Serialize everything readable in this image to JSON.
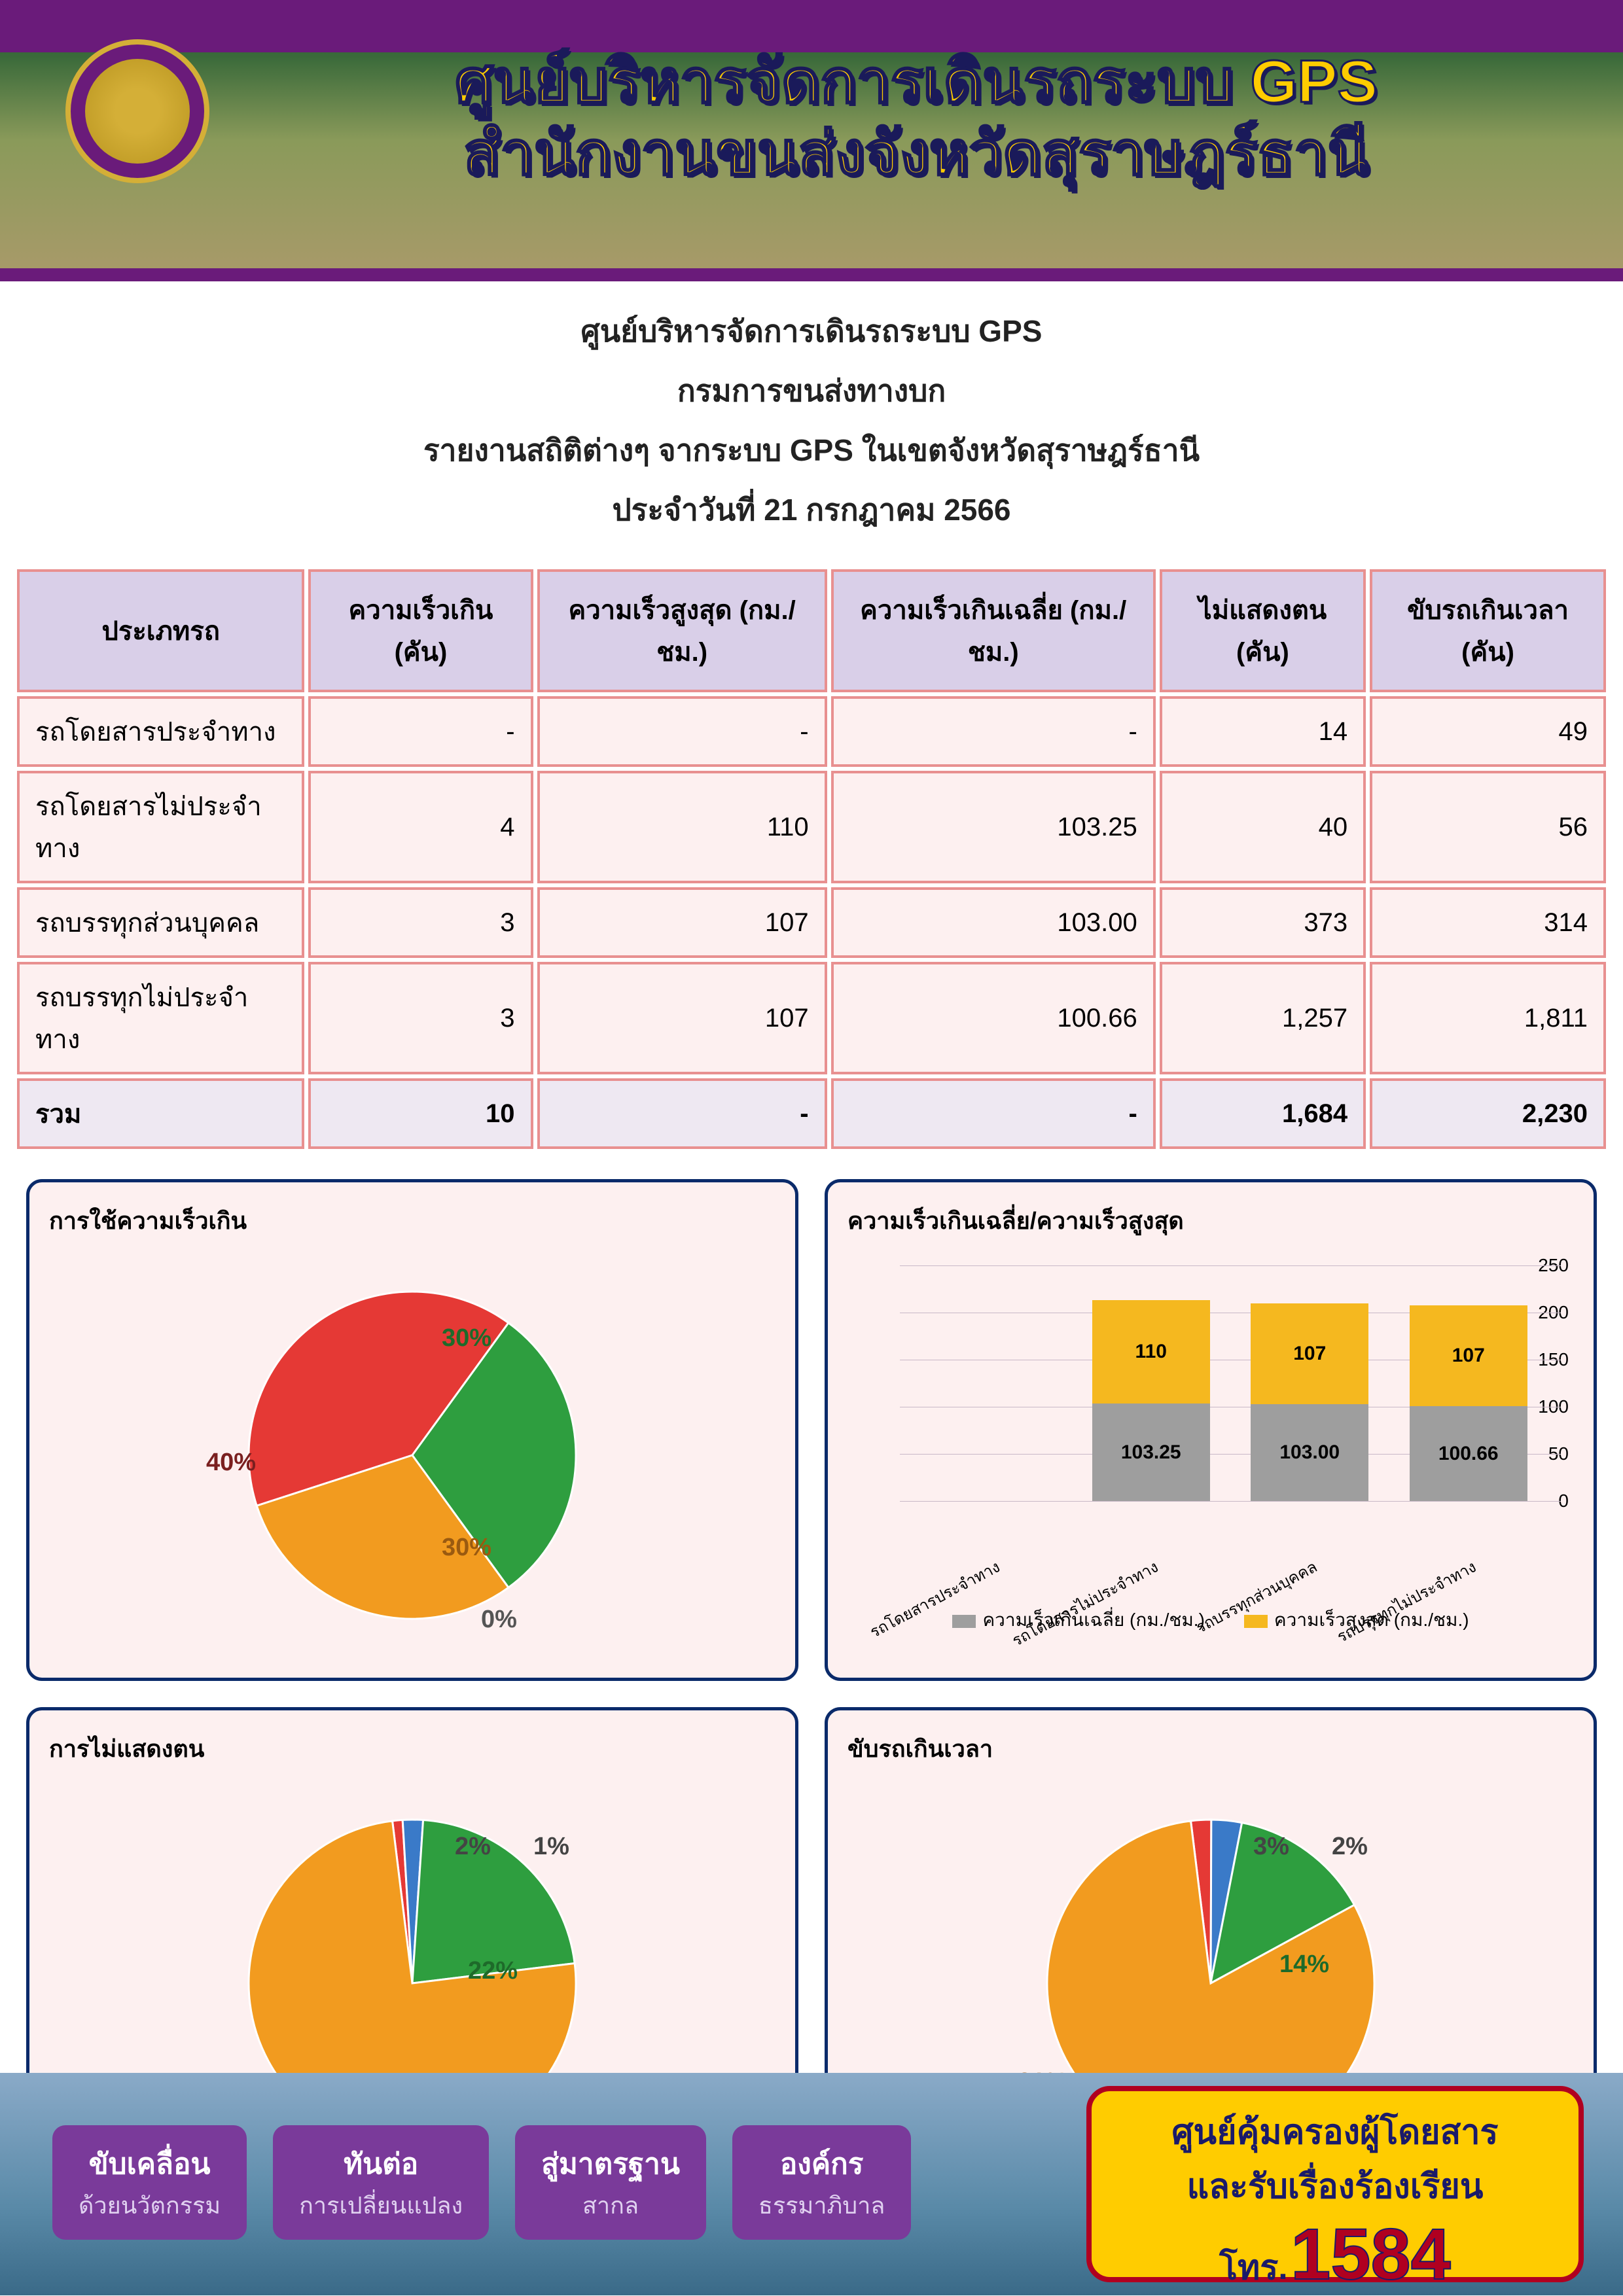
{
  "header": {
    "title_line1": "ศูนย์บริหารจัดการเดินรถระบบ GPS",
    "title_line2": "สำนักงานขนส่งจังหวัดสุราษฎร์ธานี",
    "title_color": "#ffcc00",
    "title_stroke": "#1a1a5a",
    "purple": "#6a1b7a",
    "gold": "#d4af37"
  },
  "subheader": {
    "line1": "ศูนย์บริหารจัดการเดินรถระบบ GPS",
    "line2": "กรมการขนส่งทางบก",
    "line3": "รายงานสถิติต่างๆ จากระบบ GPS ในเขตจังหวัดสุราษฎร์ธานี",
    "line4": "ประจำวันที่    21  กรกฎาคม    2566"
  },
  "table": {
    "header_bg": "#d9cfe8",
    "cell_bg": "#fdf0f0",
    "border_color": "#e89090",
    "columns": [
      "ประเภทรถ",
      "ความเร็วเกิน (คัน)",
      "ความเร็วสูงสุด (กม./ชม.)",
      "ความเร็วเกินเฉลี่ย (กม./ชม.)",
      "ไม่แสดงตน (คัน)",
      "ขับรถเกินเวลา (คัน)"
    ],
    "rows": [
      [
        "รถโดยสารประจำทาง",
        "-",
        "-",
        "-",
        "14",
        "49"
      ],
      [
        "รถโดยสารไม่ประจำทาง",
        "4",
        "110",
        "103.25",
        "40",
        "56"
      ],
      [
        "รถบรรทุกส่วนบุคคล",
        "3",
        "107",
        "103.00",
        "373",
        "314"
      ],
      [
        "รถบรรทุกไม่ประจำทาง",
        "3",
        "107",
        "100.66",
        "1,257",
        "1,811"
      ]
    ],
    "total": [
      "รวม",
      "10",
      "-",
      "-",
      "1,684",
      "2,230"
    ]
  },
  "colors": {
    "red": "#e53935",
    "green": "#2e9e3f",
    "orange": "#f29b1f",
    "blue": "#3a7ac8",
    "gray": "#9e9e9e",
    "yellow_bar": "#f5b81f"
  },
  "pie_speed": {
    "title": "การใช้ความเร็วเกิน",
    "slices": [
      {
        "label": "40%",
        "value": 40,
        "color": "#e53935",
        "lx": 240,
        "ly": 300,
        "lc": "#7a1f1f"
      },
      {
        "label": "30%",
        "value": 30,
        "color": "#2e9e3f",
        "lx": 600,
        "ly": 110,
        "lc": "#1e6a2a"
      },
      {
        "label": "30%",
        "value": 30,
        "color": "#f29b1f",
        "lx": 600,
        "ly": 430,
        "lc": "#9a5a10"
      },
      {
        "label": "0%",
        "value": 0,
        "color": "#3a7ac8",
        "lx": 660,
        "ly": 540,
        "lc": "#555"
      }
    ]
  },
  "bar_chart": {
    "title": "ความเร็วเกินเฉลี่ย/ความเร็วสูงสุด",
    "y_max": 250,
    "y_ticks": [
      0,
      50,
      100,
      150,
      200,
      250
    ],
    "categories": [
      "รถโดยสารประจำทาง",
      "รถโดยสารไม่ประจำทาง",
      "รถบรรทุกส่วนบุคคล",
      "รถบรรทุกไม่ประจำทาง"
    ],
    "series_avg": {
      "label": "ความเร็วเกินเฉลี่ย (กม./ชม.)",
      "color": "#9e9e9e",
      "values": [
        0,
        103.25,
        103.0,
        100.66
      ],
      "labels": [
        "",
        "103.25",
        "103.00",
        "100.66"
      ]
    },
    "series_max": {
      "label": "ความเร็วสูงสุด (กม./ชม.)",
      "color": "#f5b81f",
      "values": [
        0,
        110,
        107,
        107
      ],
      "labels": [
        "",
        "110",
        "107",
        "107"
      ]
    },
    "bg": "#fdf0f0",
    "grid_color": "#c8b8c8"
  },
  "pie_noshow": {
    "title": "การไม่แสดงตน",
    "slices": [
      {
        "label": "1%",
        "value": 1,
        "color": "#e53935",
        "lx": 740,
        "ly": 80,
        "lc": "#444"
      },
      {
        "label": "2%",
        "value": 2,
        "color": "#3a7ac8",
        "lx": 620,
        "ly": 80,
        "lc": "#444"
      },
      {
        "label": "22%",
        "value": 22,
        "color": "#2e9e3f",
        "lx": 640,
        "ly": 270,
        "lc": "#1e6a2a"
      },
      {
        "label": "75%",
        "value": 75,
        "color": "#f29b1f",
        "lx": 240,
        "ly": 460,
        "lc": "#9a5a10"
      }
    ]
  },
  "pie_overtime": {
    "title": "ขับรถเกินเวลา",
    "slices": [
      {
        "label": "2%",
        "value": 2,
        "color": "#e53935",
        "lx": 740,
        "ly": 80,
        "lc": "#444"
      },
      {
        "label": "3%",
        "value": 3,
        "color": "#3a7ac8",
        "lx": 620,
        "ly": 80,
        "lc": "#444"
      },
      {
        "label": "14%",
        "value": 14,
        "color": "#2e9e3f",
        "lx": 660,
        "ly": 260,
        "lc": "#1e6a2a"
      },
      {
        "label": "81%",
        "value": 81,
        "color": "#f29b1f",
        "lx": 260,
        "ly": 440,
        "lc": "#9a5a10"
      }
    ]
  },
  "footer": {
    "badges": [
      {
        "line1": "ขับเคลื่อน",
        "line2": "ด้วยนวัตกรรม"
      },
      {
        "line1": "ทันต่อ",
        "line2": "การเปลี่ยนแปลง"
      },
      {
        "line1": "สู่มาตรฐาน",
        "line2": "สากล"
      },
      {
        "line1": "องค์กร",
        "line2": "ธรรมาภิบาล"
      }
    ],
    "callbox": {
      "line1": "ศูนย์คุ้มครองผู้โดยสาร",
      "line2": "และรับเรื่องร้องเรียน",
      "tel_label": "โทร.",
      "tel_num": "1584",
      "bg": "#ffcc00",
      "border": "#b00020"
    }
  }
}
